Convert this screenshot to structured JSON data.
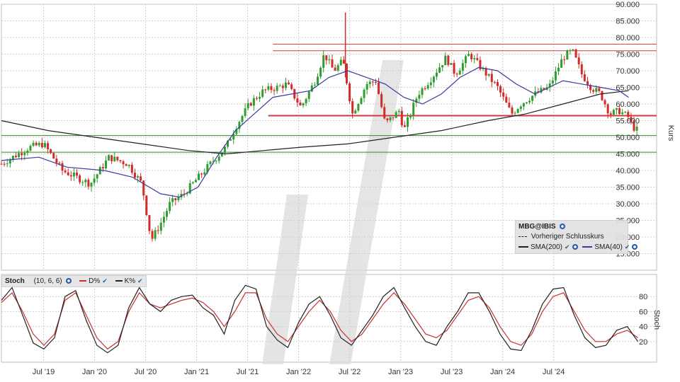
{
  "chart_data": [
    {
      "type": "candlestick",
      "symbol": "MBG@IBIS",
      "ylabel": "Kurs",
      "ylim": [
        10,
        90
      ],
      "y_ticks": [
        "90.000",
        "85.000",
        "80.000",
        "75.000",
        "70.000",
        "65.000",
        "60.000",
        "55.000",
        "50.000",
        "45.000",
        "40.000",
        "35.000",
        "30.000",
        "25.000",
        "20.000",
        "15.000"
      ],
      "x_ticks": [
        "Jul '19",
        "Jan '20",
        "Jul '20",
        "Jan '21",
        "Jul '21",
        "Jan '22",
        "Jul '22",
        "Jan '23",
        "Jul '23",
        "Jan '24",
        "Jul '24"
      ],
      "grid": true,
      "legend_position": "bottom-right",
      "legend": {
        "symbol": "MBG@IBIS",
        "prev_close": "Vorheriger Schlusskurs",
        "sma200": "SMA(200)",
        "sma40": "SMA(40)"
      },
      "price_path": [
        {
          "t": 0,
          "v": 42
        },
        {
          "t": 6,
          "v": 47
        },
        {
          "t": 9,
          "v": 48
        },
        {
          "t": 13,
          "v": 40
        },
        {
          "t": 19,
          "v": 36
        },
        {
          "t": 23,
          "v": 44
        },
        {
          "t": 27,
          "v": 42
        },
        {
          "t": 30,
          "v": 36
        },
        {
          "t": 32,
          "v": 19
        },
        {
          "t": 34,
          "v": 24
        },
        {
          "t": 36,
          "v": 30
        },
        {
          "t": 39,
          "v": 33
        },
        {
          "t": 44,
          "v": 41
        },
        {
          "t": 48,
          "v": 47
        },
        {
          "t": 50,
          "v": 53
        },
        {
          "t": 53,
          "v": 60
        },
        {
          "t": 56,
          "v": 64
        },
        {
          "t": 59,
          "v": 65
        },
        {
          "t": 61,
          "v": 66
        },
        {
          "t": 64,
          "v": 59
        },
        {
          "t": 67,
          "v": 67
        },
        {
          "t": 69,
          "v": 75
        },
        {
          "t": 71,
          "v": 70
        },
        {
          "t": 73,
          "v": 73
        },
        {
          "t": 75,
          "v": 57
        },
        {
          "t": 78,
          "v": 66
        },
        {
          "t": 80,
          "v": 67
        },
        {
          "t": 82,
          "v": 54
        },
        {
          "t": 85,
          "v": 58
        },
        {
          "t": 86,
          "v": 52
        },
        {
          "t": 89,
          "v": 63
        },
        {
          "t": 92,
          "v": 68
        },
        {
          "t": 95,
          "v": 74
        },
        {
          "t": 97,
          "v": 69
        },
        {
          "t": 100,
          "v": 75
        },
        {
          "t": 103,
          "v": 70
        },
        {
          "t": 106,
          "v": 65
        },
        {
          "t": 109,
          "v": 57
        },
        {
          "t": 111,
          "v": 60
        },
        {
          "t": 114,
          "v": 63
        },
        {
          "t": 117,
          "v": 65
        },
        {
          "t": 120,
          "v": 74
        },
        {
          "t": 122,
          "v": 76
        },
        {
          "t": 124,
          "v": 69
        },
        {
          "t": 126,
          "v": 65
        },
        {
          "t": 128,
          "v": 63
        },
        {
          "t": 130,
          "v": 57
        },
        {
          "t": 132,
          "v": 58
        },
        {
          "t": 134,
          "v": 56
        },
        {
          "t": 135,
          "v": 53
        },
        {
          "t": 136,
          "v": 52
        }
      ],
      "sma40_path": [
        {
          "t": 0,
          "v": 43
        },
        {
          "t": 8,
          "v": 44
        },
        {
          "t": 14,
          "v": 41
        },
        {
          "t": 22,
          "v": 40
        },
        {
          "t": 28,
          "v": 38
        },
        {
          "t": 34,
          "v": 33
        },
        {
          "t": 38,
          "v": 32
        },
        {
          "t": 42,
          "v": 35
        },
        {
          "t": 46,
          "v": 44
        },
        {
          "t": 50,
          "v": 52
        },
        {
          "t": 54,
          "v": 57
        },
        {
          "t": 58,
          "v": 62
        },
        {
          "t": 62,
          "v": 63
        },
        {
          "t": 66,
          "v": 64
        },
        {
          "t": 70,
          "v": 68
        },
        {
          "t": 74,
          "v": 70
        },
        {
          "t": 78,
          "v": 68
        },
        {
          "t": 82,
          "v": 66
        },
        {
          "t": 86,
          "v": 62
        },
        {
          "t": 90,
          "v": 60
        },
        {
          "t": 94,
          "v": 63
        },
        {
          "t": 98,
          "v": 68
        },
        {
          "t": 102,
          "v": 71
        },
        {
          "t": 106,
          "v": 70
        },
        {
          "t": 110,
          "v": 66
        },
        {
          "t": 114,
          "v": 63
        },
        {
          "t": 117,
          "v": 65
        },
        {
          "t": 120,
          "v": 67
        },
        {
          "t": 124,
          "v": 66
        },
        {
          "t": 128,
          "v": 65
        },
        {
          "t": 132,
          "v": 64
        },
        {
          "t": 134,
          "v": 62
        }
      ],
      "sma200_path": [
        {
          "t": 0,
          "v": 55
        },
        {
          "t": 10,
          "v": 52
        },
        {
          "t": 20,
          "v": 50
        },
        {
          "t": 30,
          "v": 48
        },
        {
          "t": 40,
          "v": 46
        },
        {
          "t": 48,
          "v": 45
        },
        {
          "t": 56,
          "v": 46
        },
        {
          "t": 64,
          "v": 47
        },
        {
          "t": 74,
          "v": 48
        },
        {
          "t": 84,
          "v": 50
        },
        {
          "t": 94,
          "v": 52
        },
        {
          "t": 104,
          "v": 55
        },
        {
          "t": 112,
          "v": 57
        },
        {
          "t": 120,
          "v": 60
        },
        {
          "t": 128,
          "v": 63
        },
        {
          "t": 134,
          "v": 64
        }
      ],
      "horizontal_lines": [
        {
          "v": 78,
          "color": "#d33a3a"
        },
        {
          "v": 76,
          "color": "#d33a3a"
        },
        {
          "v": 56.5,
          "color": "#d33a3a"
        },
        {
          "v": 50.5,
          "color": "#2e8b2e"
        },
        {
          "v": 45.5,
          "color": "#2e8b2e"
        }
      ]
    },
    {
      "type": "line",
      "title": "Stoch",
      "params": "(10, 6, 6)",
      "ylabel": "Stoch",
      "ylim": [
        0,
        100
      ],
      "y_ticks": [
        "80",
        "60",
        "40",
        "20"
      ],
      "series": [
        {
          "name": "D%",
          "color": "#c83232",
          "values": [
            72,
            85,
            60,
            30,
            15,
            30,
            75,
            85,
            55,
            25,
            10,
            20,
            60,
            85,
            70,
            65,
            70,
            75,
            78,
            72,
            60,
            40,
            60,
            85,
            85,
            50,
            30,
            20,
            40,
            60,
            75,
            60,
            35,
            20,
            30,
            50,
            70,
            85,
            70,
            50,
            30,
            25,
            35,
            55,
            75,
            80,
            65,
            40,
            20,
            15,
            30,
            60,
            80,
            85,
            60,
            35,
            20,
            20,
            30,
            35,
            25
          ]
        },
        {
          "name": "K%",
          "color": "#222222",
          "values": [
            75,
            92,
            55,
            18,
            10,
            25,
            80,
            88,
            48,
            15,
            5,
            15,
            65,
            92,
            70,
            60,
            75,
            80,
            82,
            65,
            55,
            30,
            75,
            95,
            90,
            40,
            22,
            12,
            45,
            70,
            80,
            55,
            25,
            15,
            35,
            55,
            80,
            92,
            65,
            40,
            20,
            15,
            40,
            60,
            85,
            85,
            60,
            30,
            10,
            8,
            35,
            70,
            90,
            92,
            55,
            25,
            12,
            15,
            35,
            40,
            20
          ]
        }
      ]
    }
  ],
  "legend_icons": {
    "settings": "gear-icon",
    "visible": "check-icon"
  },
  "stoch_legend": {
    "name": "Stoch",
    "params": "(10, 6, 6)",
    "d": "D%",
    "k": "K%"
  }
}
